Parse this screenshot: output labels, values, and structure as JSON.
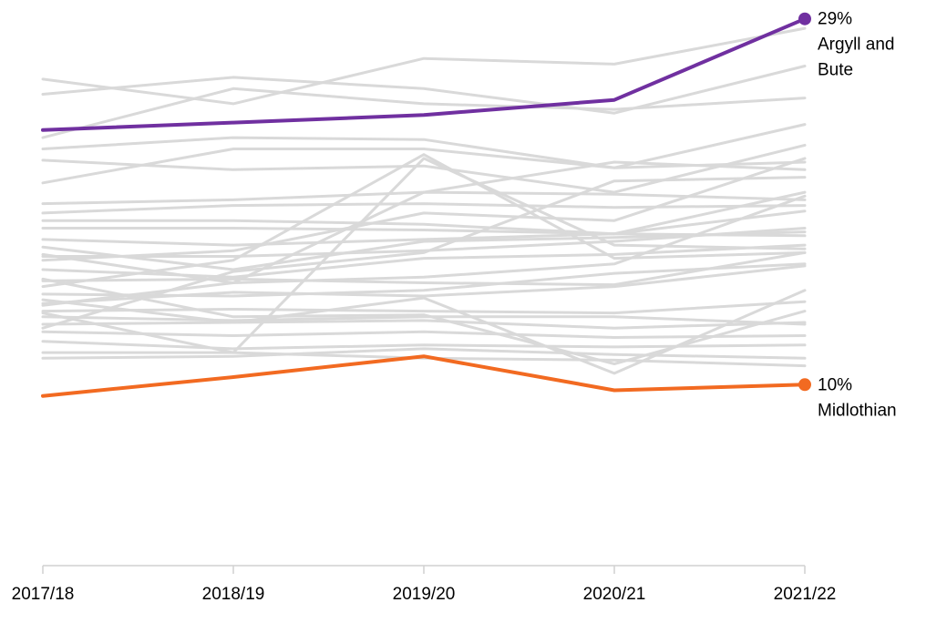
{
  "chart_data": {
    "type": "line",
    "x": [
      "2017/18",
      "2018/19",
      "2019/20",
      "2020/21",
      "2021/22"
    ],
    "ylim": [
      0,
      30
    ],
    "grid": false,
    "legend": "none",
    "colors": {
      "background_series": "#d9d9d9",
      "highlight_high": "#7030a0",
      "highlight_low": "#f26a21",
      "axis": "#d0d0d0",
      "text": "#000000"
    },
    "highlighted_series": [
      {
        "name": "Argyll and Bute",
        "values": [
          23.1,
          23.5,
          23.9,
          24.7,
          29.0
        ],
        "end_label": "29%",
        "name_label_lines": [
          "Argyll and",
          "Bute"
        ],
        "color": "#7030a0"
      },
      {
        "name": "Midlothian",
        "values": [
          9.0,
          10.0,
          11.1,
          9.3,
          9.6
        ],
        "end_label": "10%",
        "name_label_lines": [
          "Midlothian"
        ],
        "color": "#f26a21"
      }
    ],
    "background_series": [
      {
        "values": [
          25.8,
          24.5,
          26.9,
          26.6,
          28.5
        ]
      },
      {
        "values": [
          25.0,
          25.9,
          25.3,
          24.0,
          26.5
        ]
      },
      {
        "values": [
          22.7,
          25.3,
          24.5,
          24.2,
          24.8
        ]
      },
      {
        "values": [
          22.1,
          22.7,
          22.6,
          21.1,
          23.4
        ]
      },
      {
        "values": [
          21.5,
          21.0,
          21.2,
          19.8,
          22.3
        ]
      },
      {
        "values": [
          20.3,
          22.1,
          22.1,
          21.1,
          21.4
        ]
      },
      {
        "values": [
          19.2,
          19.4,
          19.8,
          19.7,
          19.4
        ]
      },
      {
        "values": [
          18.7,
          19.1,
          19.2,
          19.0,
          19.1
        ]
      },
      {
        "values": [
          18.3,
          18.3,
          18.1,
          17.6,
          19.8
        ]
      },
      {
        "values": [
          17.9,
          17.9,
          17.8,
          17.6,
          18.8
        ]
      },
      {
        "values": [
          17.3,
          17.0,
          17.3,
          17.6,
          17.5
        ]
      },
      {
        "values": [
          16.9,
          15.7,
          17.2,
          17.4,
          17.7
        ]
      },
      {
        "values": [
          16.4,
          16.4,
          16.7,
          17.2,
          17.9
        ]
      },
      {
        "values": [
          15.7,
          15.3,
          16.3,
          16.5,
          17.0
        ]
      },
      {
        "values": [
          15.1,
          15.2,
          15.0,
          14.9,
          16.6
        ]
      },
      {
        "values": [
          14.4,
          14.3,
          14.6,
          15.5,
          16.0
        ]
      },
      {
        "values": [
          13.9,
          14.5,
          14.3,
          14.8,
          15.9
        ]
      },
      {
        "values": [
          13.5,
          13.6,
          13.5,
          13.4,
          14.0
        ]
      },
      {
        "values": [
          13.2,
          13.0,
          13.2,
          13.2,
          12.8
        ]
      },
      {
        "values": [
          12.8,
          12.9,
          13.0,
          12.6,
          12.9
        ]
      },
      {
        "values": [
          12.4,
          12.2,
          12.4,
          12.1,
          12.2
        ]
      },
      {
        "values": [
          11.9,
          11.5,
          11.7,
          11.6,
          11.7
        ]
      },
      {
        "values": [
          11.3,
          11.3,
          11.0,
          10.9,
          10.6
        ]
      },
      {
        "values": [
          11.0,
          11.1,
          11.5,
          11.2,
          11.0
        ]
      },
      {
        "values": [
          13.4,
          11.3,
          21.6,
          17.0,
          16.8
        ]
      },
      {
        "values": [
          14.8,
          16.2,
          21.8,
          16.3,
          16.6
        ]
      },
      {
        "values": [
          12.6,
          15.6,
          16.6,
          20.4,
          20.6
        ]
      },
      {
        "values": [
          13.8,
          15.0,
          19.8,
          21.4,
          21.0
        ]
      },
      {
        "values": [
          16.2,
          16.7,
          18.7,
          18.3,
          21.6
        ]
      },
      {
        "values": [
          14.1,
          12.9,
          14.2,
          10.2,
          14.6
        ]
      },
      {
        "values": [
          15.2,
          13.2,
          13.3,
          10.7,
          13.5
        ]
      },
      {
        "values": [
          16.5,
          15.0,
          15.3,
          16.0,
          19.6
        ]
      }
    ]
  }
}
